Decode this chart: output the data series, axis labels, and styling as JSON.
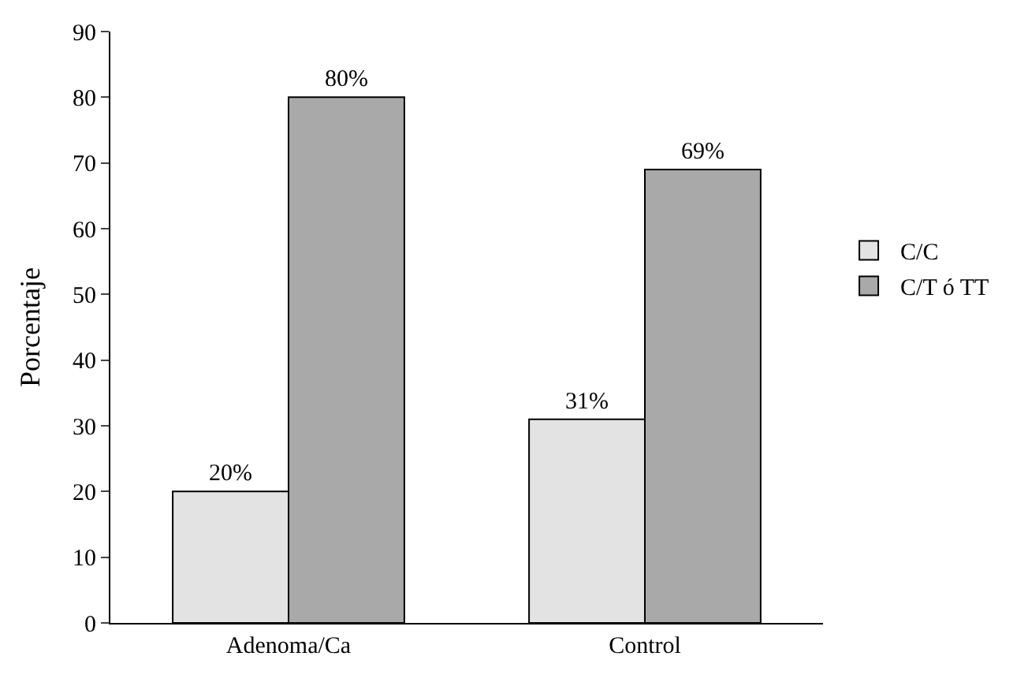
{
  "chart_data": {
    "type": "bar",
    "ylabel": "Porcentaje",
    "categories": [
      "Adenoma/Ca",
      "Control"
    ],
    "series": [
      {
        "name": "C/C",
        "color": "#e3e3e3",
        "values": [
          20,
          31
        ],
        "value_labels": [
          "20%",
          "31%"
        ]
      },
      {
        "name": "C/T ó TT",
        "color": "#a9a9a9",
        "values": [
          80,
          69
        ],
        "value_labels": [
          "80%",
          "69%"
        ]
      }
    ],
    "ylim": [
      0,
      90
    ],
    "yticks": [
      0,
      10,
      20,
      30,
      40,
      50,
      60,
      70,
      80,
      90
    ],
    "legend": "right"
  }
}
